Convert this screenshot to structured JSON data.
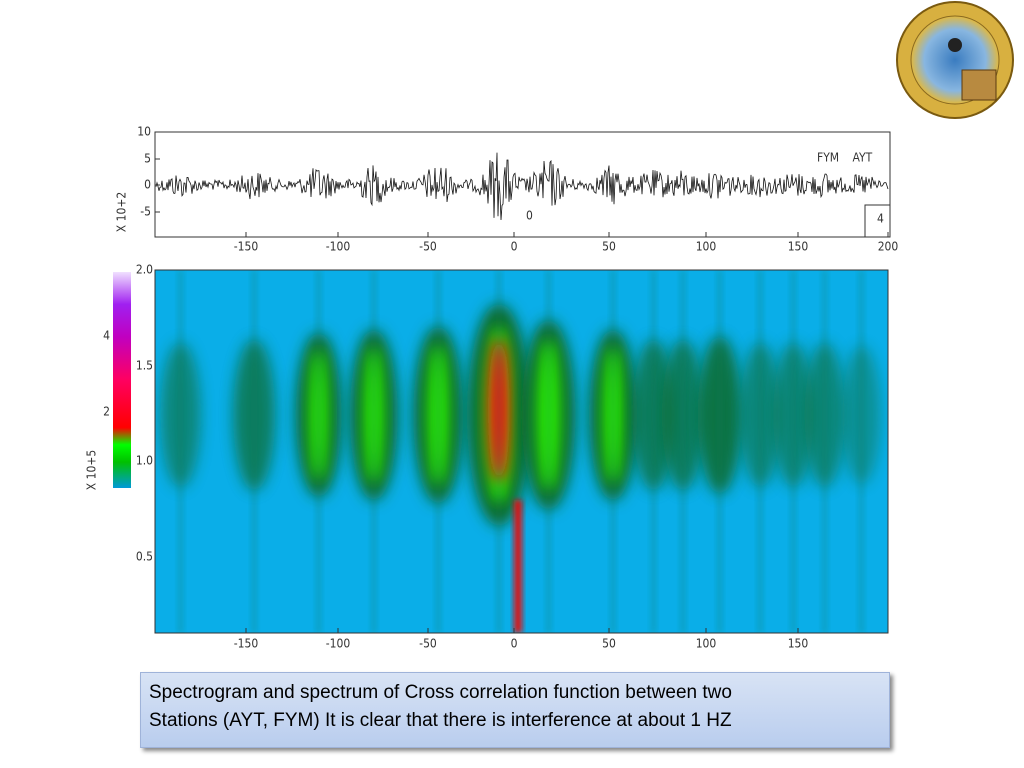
{
  "figure": {
    "waveform": {
      "x_tick_labels": [
        "-150",
        "-100",
        "-50",
        "0",
        "50",
        "100",
        "150",
        "200"
      ],
      "y_tick_labels": [
        "10",
        "5",
        "0",
        "-5"
      ],
      "y_label": "X 10+2",
      "legend": "FYM AYT",
      "panel_number": "4",
      "marker": "0"
    },
    "spectrogram": {
      "x_tick_labels": [
        "-150",
        "-100",
        "-50",
        "0",
        "50",
        "100",
        "150"
      ],
      "y_tick_labels": [
        "2.0",
        "1.5",
        "1.0",
        "0.5"
      ],
      "colorbar_tick_labels": [
        "4",
        "2"
      ],
      "colorbar_label": "X 10+5"
    }
  },
  "caption": {
    "lines": [
      "Spectrogram and spectrum of Cross correlation function between two",
      "Stations (AYT, FYM) It is clear that there is interference at about 1 HZ"
    ]
  }
}
